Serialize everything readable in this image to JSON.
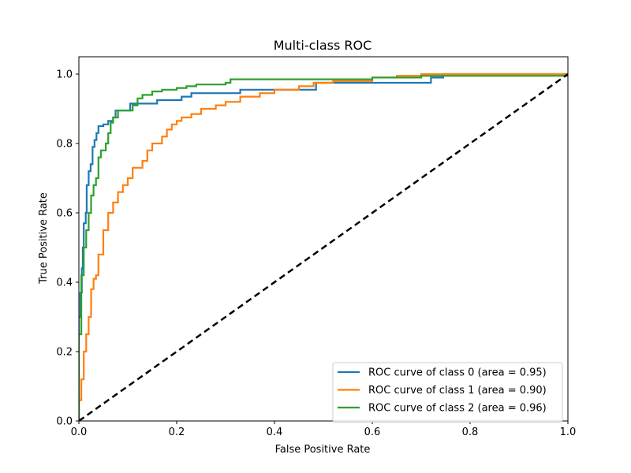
{
  "chart_data": {
    "type": "line",
    "title": "Multi-class ROC",
    "xlabel": "False Positive Rate",
    "ylabel": "True Positive Rate",
    "xlim": [
      0,
      1
    ],
    "ylim": [
      0,
      1.05
    ],
    "xticks": [
      "0.0",
      "0.2",
      "0.4",
      "0.6",
      "0.8",
      "1.0"
    ],
    "yticks": [
      "0.0",
      "0.2",
      "0.4",
      "0.6",
      "0.8",
      "1.0"
    ],
    "grid": false,
    "legend_position": "lower-right",
    "series": [
      {
        "name": "ROC curve of class 0 (area = 0.95)",
        "color": "#1f77b4",
        "points": [
          [
            0,
            0
          ],
          [
            0,
            0.3
          ],
          [
            0.003,
            0.37
          ],
          [
            0.006,
            0.44
          ],
          [
            0.008,
            0.5
          ],
          [
            0.01,
            0.57
          ],
          [
            0.014,
            0.6
          ],
          [
            0.016,
            0.68
          ],
          [
            0.02,
            0.72
          ],
          [
            0.024,
            0.74
          ],
          [
            0.028,
            0.79
          ],
          [
            0.032,
            0.81
          ],
          [
            0.036,
            0.83
          ],
          [
            0.04,
            0.85
          ],
          [
            0.05,
            0.855
          ],
          [
            0.06,
            0.865
          ],
          [
            0.07,
            0.875
          ],
          [
            0.075,
            0.895
          ],
          [
            0.1,
            0.895
          ],
          [
            0.105,
            0.915
          ],
          [
            0.155,
            0.915
          ],
          [
            0.16,
            0.925
          ],
          [
            0.205,
            0.925
          ],
          [
            0.21,
            0.935
          ],
          [
            0.225,
            0.935
          ],
          [
            0.23,
            0.945
          ],
          [
            0.32,
            0.945
          ],
          [
            0.33,
            0.955
          ],
          [
            0.48,
            0.955
          ],
          [
            0.485,
            0.975
          ],
          [
            0.715,
            0.975
          ],
          [
            0.72,
            0.99
          ],
          [
            0.74,
            0.99
          ],
          [
            0.745,
            1.0
          ],
          [
            1.0,
            1.0
          ]
        ]
      },
      {
        "name": "ROC curve of class 1 (area = 0.90)",
        "color": "#ff7f0e",
        "points": [
          [
            0,
            0
          ],
          [
            0,
            0.06
          ],
          [
            0.005,
            0.12
          ],
          [
            0.01,
            0.2
          ],
          [
            0.015,
            0.25
          ],
          [
            0.02,
            0.3
          ],
          [
            0.025,
            0.38
          ],
          [
            0.03,
            0.41
          ],
          [
            0.035,
            0.42
          ],
          [
            0.04,
            0.48
          ],
          [
            0.05,
            0.55
          ],
          [
            0.06,
            0.6
          ],
          [
            0.07,
            0.63
          ],
          [
            0.08,
            0.66
          ],
          [
            0.09,
            0.68
          ],
          [
            0.1,
            0.7
          ],
          [
            0.11,
            0.73
          ],
          [
            0.13,
            0.75
          ],
          [
            0.14,
            0.78
          ],
          [
            0.15,
            0.8
          ],
          [
            0.17,
            0.82
          ],
          [
            0.18,
            0.84
          ],
          [
            0.19,
            0.855
          ],
          [
            0.2,
            0.865
          ],
          [
            0.21,
            0.875
          ],
          [
            0.23,
            0.885
          ],
          [
            0.25,
            0.9
          ],
          [
            0.28,
            0.91
          ],
          [
            0.3,
            0.92
          ],
          [
            0.33,
            0.935
          ],
          [
            0.37,
            0.945
          ],
          [
            0.4,
            0.955
          ],
          [
            0.45,
            0.965
          ],
          [
            0.48,
            0.975
          ],
          [
            0.52,
            0.98
          ],
          [
            0.6,
            0.99
          ],
          [
            0.65,
            0.995
          ],
          [
            0.7,
            1.0
          ],
          [
            1.0,
            1.0
          ]
        ]
      },
      {
        "name": "ROC curve of class 2 (area = 0.96)",
        "color": "#2ca02c",
        "points": [
          [
            0,
            0
          ],
          [
            0,
            0.25
          ],
          [
            0.005,
            0.42
          ],
          [
            0.01,
            0.5
          ],
          [
            0.015,
            0.55
          ],
          [
            0.02,
            0.6
          ],
          [
            0.025,
            0.65
          ],
          [
            0.03,
            0.68
          ],
          [
            0.035,
            0.7
          ],
          [
            0.04,
            0.76
          ],
          [
            0.045,
            0.78
          ],
          [
            0.055,
            0.8
          ],
          [
            0.06,
            0.83
          ],
          [
            0.065,
            0.86
          ],
          [
            0.07,
            0.875
          ],
          [
            0.08,
            0.895
          ],
          [
            0.11,
            0.91
          ],
          [
            0.12,
            0.93
          ],
          [
            0.13,
            0.94
          ],
          [
            0.15,
            0.95
          ],
          [
            0.17,
            0.955
          ],
          [
            0.2,
            0.96
          ],
          [
            0.22,
            0.965
          ],
          [
            0.24,
            0.97
          ],
          [
            0.3,
            0.975
          ],
          [
            0.31,
            0.985
          ],
          [
            0.6,
            0.99
          ],
          [
            0.7,
            0.995
          ],
          [
            1.0,
            1.0
          ]
        ]
      },
      {
        "name": "",
        "color": "#000000",
        "dashed": true,
        "points": [
          [
            0,
            0
          ],
          [
            1,
            1
          ]
        ]
      }
    ]
  }
}
